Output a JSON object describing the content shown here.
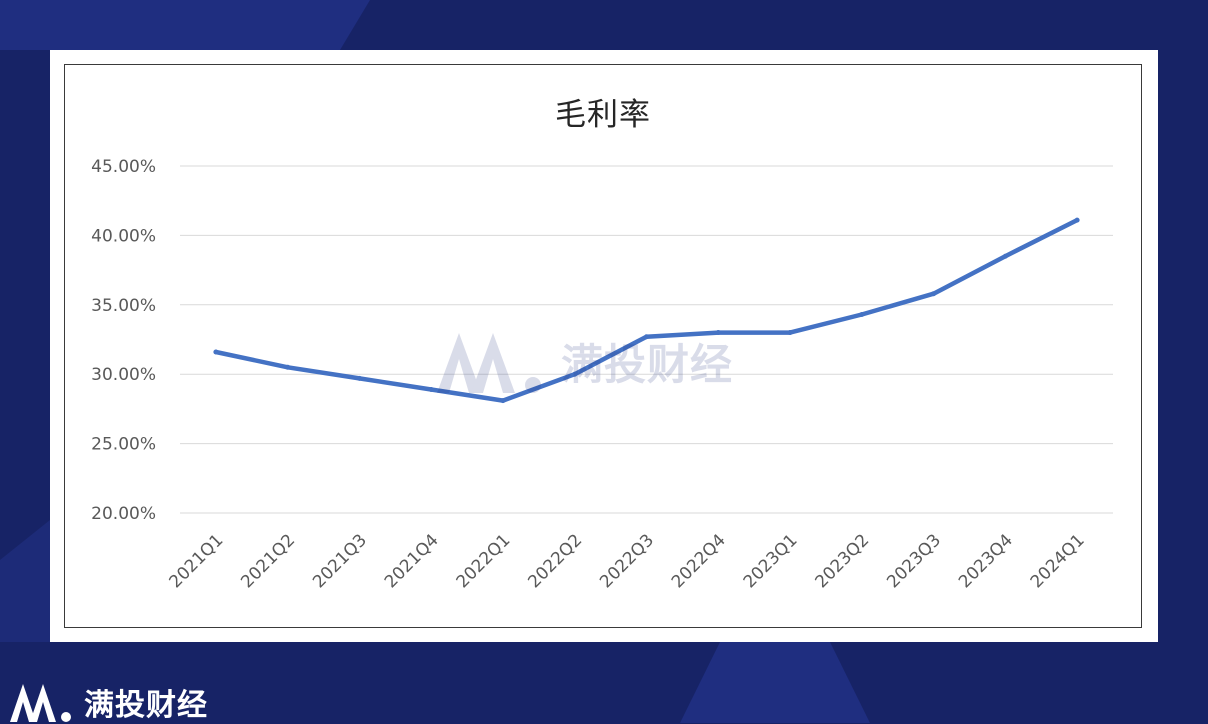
{
  "brand": {
    "name": "满投财经"
  },
  "chart_data": {
    "type": "line",
    "title": "毛利率",
    "categories": [
      "2021Q1",
      "2021Q2",
      "2021Q3",
      "2021Q4",
      "2022Q1",
      "2022Q2",
      "2022Q3",
      "2022Q4",
      "2023Q1",
      "2023Q2",
      "2023Q3",
      "2023Q4",
      "2024Q1"
    ],
    "series": [
      {
        "values": [
          31.6,
          30.5,
          29.7,
          28.9,
          28.1,
          30.0,
          32.7,
          33.0,
          33.0,
          34.3,
          35.8,
          38.5,
          41.1
        ],
        "color": "#4472c4"
      }
    ],
    "ylim": [
      20,
      45
    ],
    "yticks": [
      "20.00%",
      "25.00%",
      "30.00%",
      "35.00%",
      "40.00%",
      "45.00%"
    ],
    "grid": true,
    "legend": "none"
  }
}
